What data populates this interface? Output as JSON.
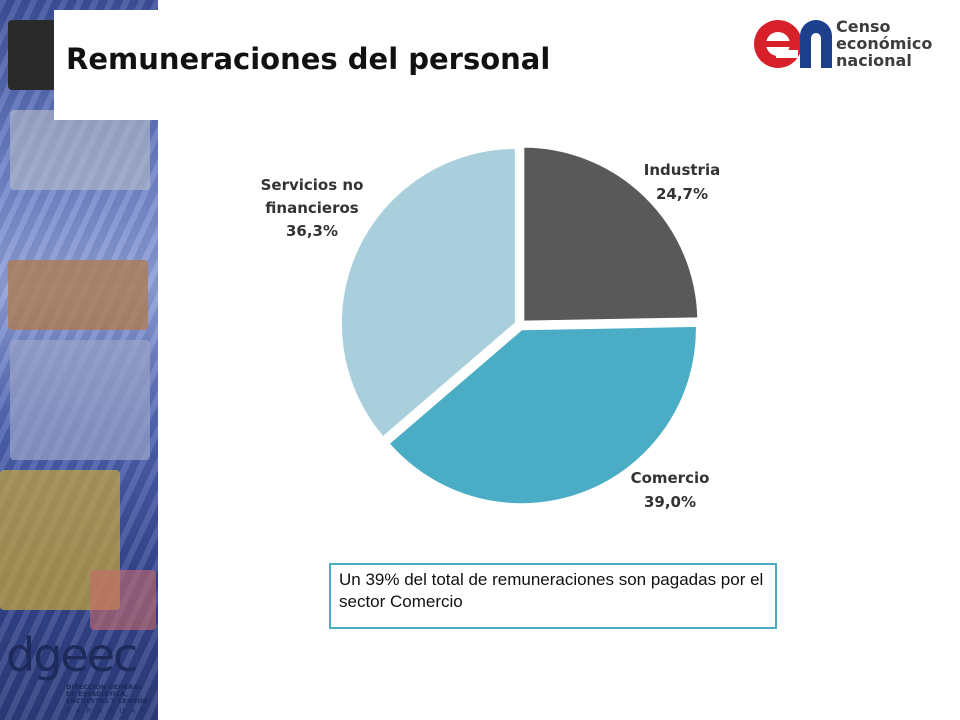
{
  "slide": {
    "title": "Remuneraciones del personal",
    "note": "Un 39% del total de remuneraciones son pagadas por el sector Comercio"
  },
  "logo": {
    "mark": "en",
    "line1": "Censo",
    "line2": "económico",
    "line3": "nacional"
  },
  "footer_logo": {
    "word": "dgeec",
    "line1": "DIRECCIÓN GENERAL",
    "line2": "DE ESTADÍSTICA,",
    "line3": "ENCUESTAS Y CENSOS",
    "country": "PARAGUAY"
  },
  "chart_data": {
    "type": "pie",
    "slices": [
      {
        "label": "Industria",
        "value": 24.7,
        "value_label": "24,7%",
        "color": "#595959"
      },
      {
        "label": "Comercio",
        "value": 39.0,
        "value_label": "39,0%",
        "color": "#4bacc6"
      },
      {
        "label": "Servicios no financieros",
        "value": 36.3,
        "value_label": "36,3%",
        "color": "#a9cfdd"
      }
    ],
    "start_angle": "12 o'clock",
    "direction": "clockwise",
    "legend": "none"
  }
}
